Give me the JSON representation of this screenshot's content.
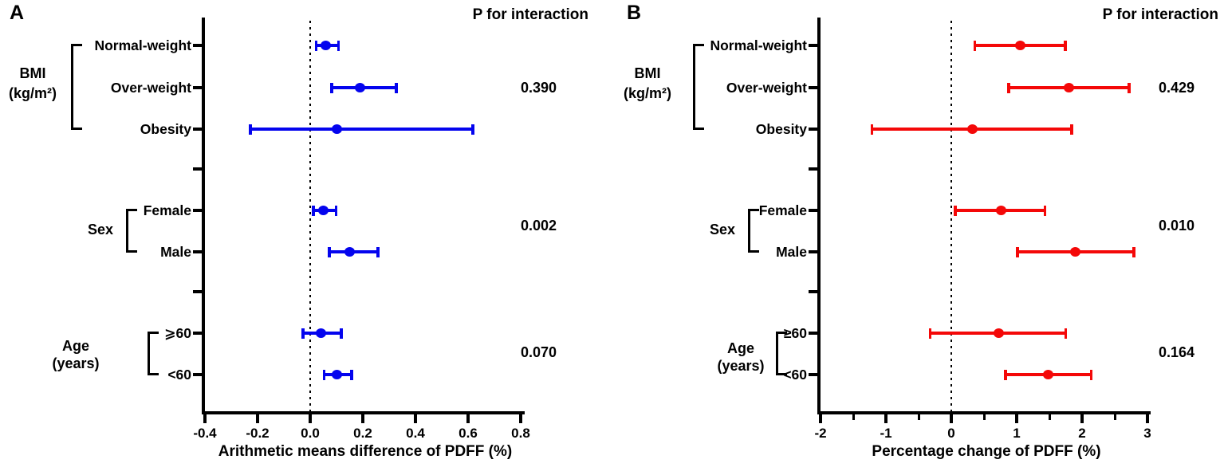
{
  "figure_background": "#ffffff",
  "chart_data": [
    {
      "type": "forest",
      "panel": "A",
      "title": "P for interaction",
      "xlabel": "Arithmetic means difference of PDFF (%)",
      "xlim": [
        -0.4,
        0.8
      ],
      "x_tick_values": [
        -0.4,
        -0.2,
        0.0,
        0.2,
        0.4,
        0.6,
        0.8
      ],
      "x_tick_labels": [
        "-0.4",
        "-0.2",
        "0.0",
        "0.2",
        "0.4",
        "0.6",
        "0.8"
      ],
      "x_minor_tick_values": [],
      "reference_line_x": 0,
      "marker_color": "#0404ee",
      "grid": false,
      "groups": [
        {
          "label_lines": [
            "BMI",
            "(kg/m²)"
          ],
          "p": "0.390",
          "rows": [
            {
              "label": "Normal-weight",
              "est": 0.06,
              "lo": 0.02,
              "hi": 0.11
            },
            {
              "label": "Over-weight",
              "est": 0.19,
              "lo": 0.08,
              "hi": 0.33
            },
            {
              "label": "Obesity",
              "est": 0.1,
              "lo": -0.23,
              "hi": 0.62
            }
          ]
        },
        {
          "label_lines": [
            "Sex"
          ],
          "p": "0.002",
          "rows": [
            {
              "label": "Female",
              "est": 0.05,
              "lo": 0.01,
              "hi": 0.1
            },
            {
              "label": "Male",
              "est": 0.15,
              "lo": 0.07,
              "hi": 0.26
            }
          ]
        },
        {
          "label_lines": [
            "Age",
            "(years)"
          ],
          "p": "0.070",
          "rows": [
            {
              "label": "⩾60",
              "est": 0.04,
              "lo": -0.03,
              "hi": 0.12
            },
            {
              "label": "<60",
              "est": 0.1,
              "lo": 0.05,
              "hi": 0.16
            }
          ]
        }
      ]
    },
    {
      "type": "forest",
      "panel": "B",
      "title": "P for interaction",
      "xlabel": "Percentage change of PDFF (%)",
      "xlim": [
        -2,
        3
      ],
      "x_tick_values": [
        -2,
        -1,
        0,
        1,
        2,
        3
      ],
      "x_tick_labels": [
        "-2",
        "-1",
        "0",
        "1",
        "2",
        "3"
      ],
      "x_minor_tick_values": [
        -1.5,
        -0.5,
        0.5,
        1.5,
        2.5
      ],
      "reference_line_x": 0,
      "marker_color": "#f40808",
      "grid": false,
      "groups": [
        {
          "label_lines": [
            "BMI",
            "(kg/m²)"
          ],
          "p": "0.429",
          "rows": [
            {
              "label": "Normal-weight",
              "est": 1.05,
              "lo": 0.35,
              "hi": 1.75
            },
            {
              "label": "Over-weight",
              "est": 1.8,
              "lo": 0.87,
              "hi": 2.73
            },
            {
              "label": "Obesity",
              "est": 0.32,
              "lo": -1.22,
              "hi": 1.85
            }
          ]
        },
        {
          "label_lines": [
            "Sex"
          ],
          "p": "0.010",
          "rows": [
            {
              "label": "Female",
              "est": 0.76,
              "lo": 0.05,
              "hi": 1.44
            },
            {
              "label": "Male",
              "est": 1.9,
              "lo": 1.0,
              "hi": 2.8
            }
          ]
        },
        {
          "label_lines": [
            "Age",
            "(years)"
          ],
          "p": "0.164",
          "rows": [
            {
              "label": "≥60",
              "est": 0.72,
              "lo": -0.33,
              "hi": 1.76
            },
            {
              "label": "<60",
              "est": 1.48,
              "lo": 0.82,
              "hi": 2.15
            }
          ]
        }
      ]
    }
  ]
}
